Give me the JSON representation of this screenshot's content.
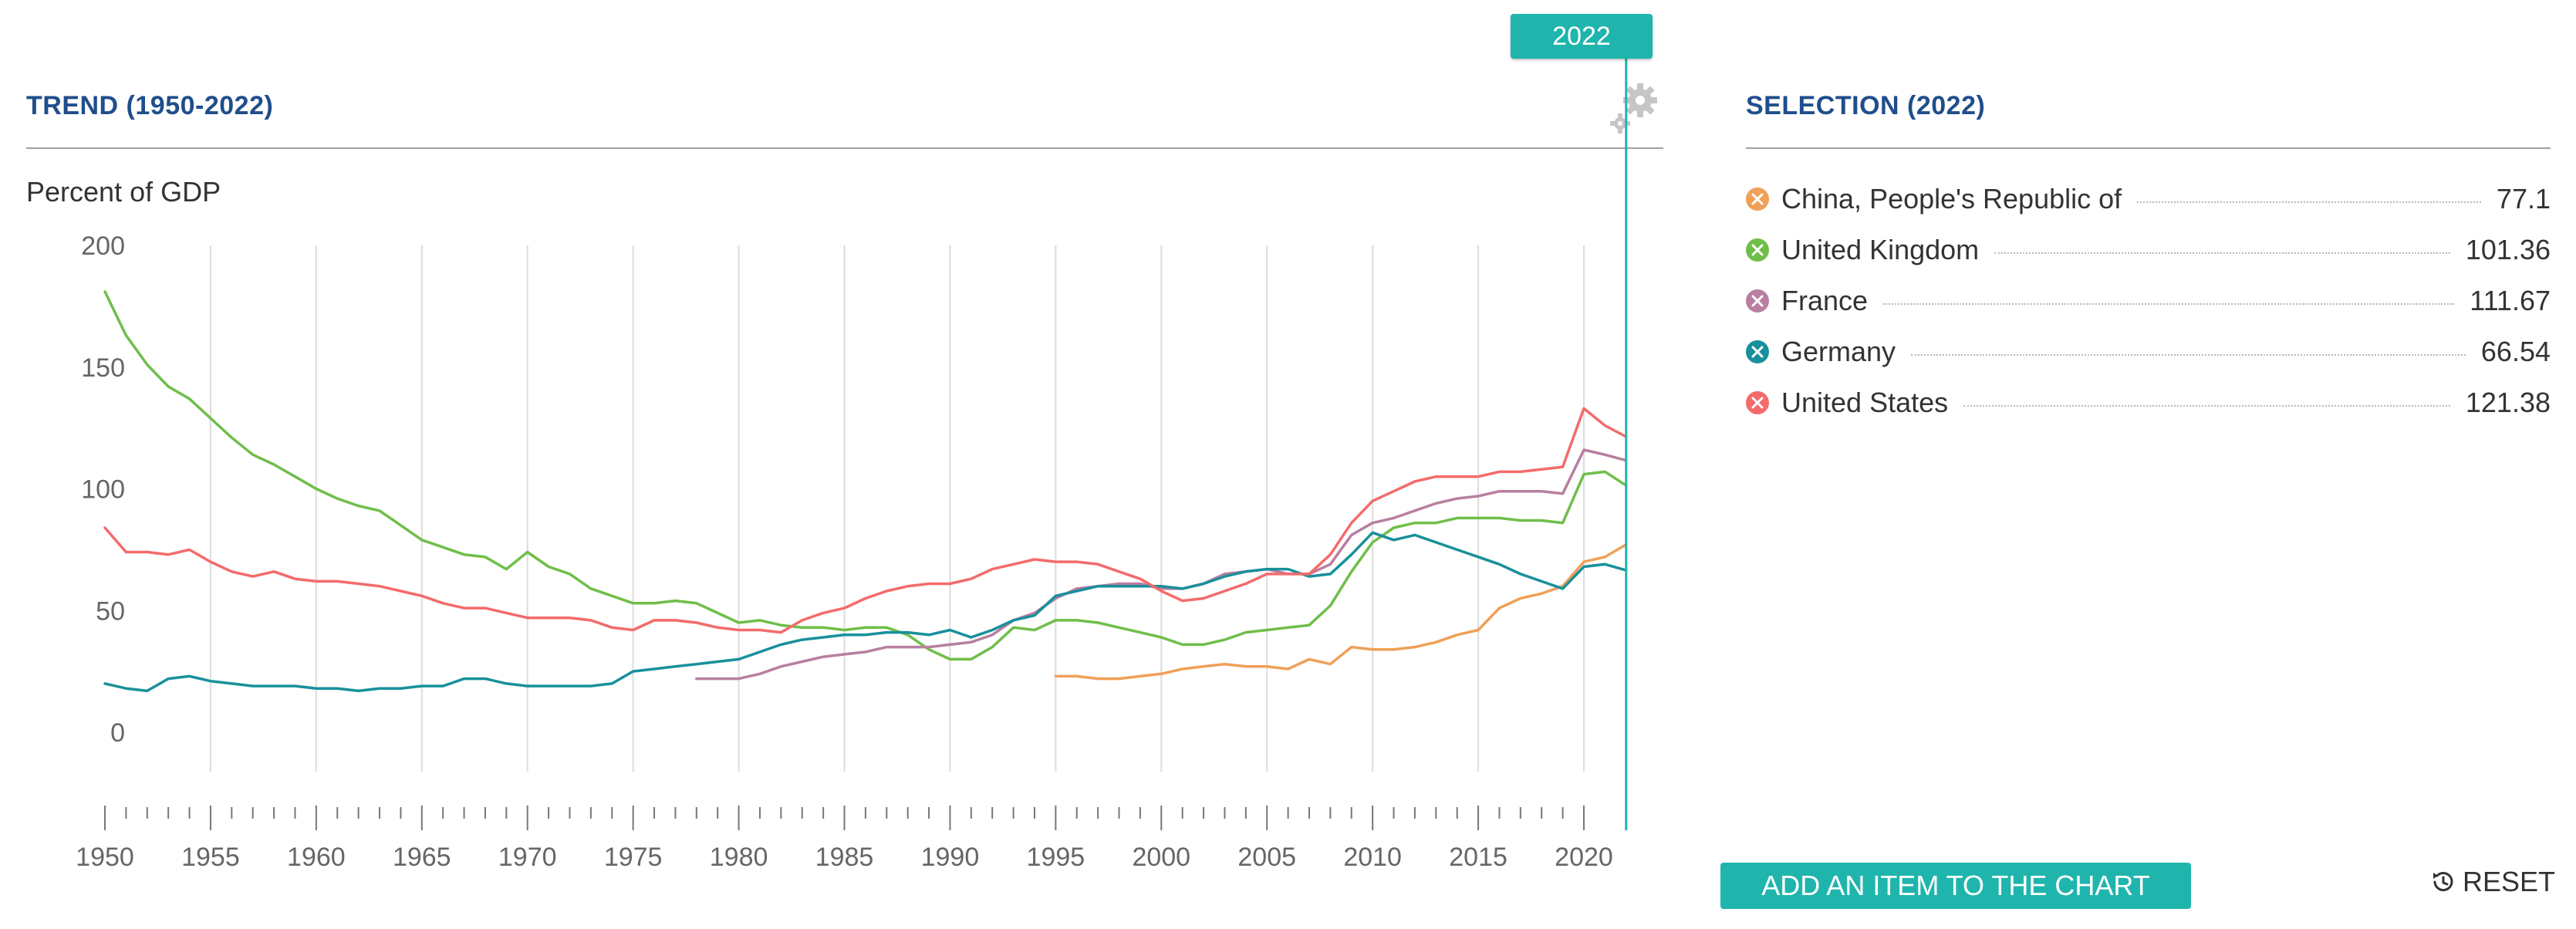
{
  "header": {
    "trend_title": "TREND (1950-2022)",
    "selection_title": "SELECTION (2022)",
    "year_flag": "2022",
    "ylabel": "Percent of GDP"
  },
  "legend": [
    {
      "name": "China, People's Republic of",
      "value": "77.1",
      "color": "#f0a058"
    },
    {
      "name": "United Kingdom",
      "value": "101.36",
      "color": "#6fbe4a"
    },
    {
      "name": "France",
      "value": "111.67",
      "color": "#b87fa0"
    },
    {
      "name": "Germany",
      "value": "66.54",
      "color": "#18909b"
    },
    {
      "name": "United States",
      "value": "121.38",
      "color": "#f36b6b"
    }
  ],
  "buttons": {
    "add_item": "ADD AN ITEM TO THE CHART",
    "reset": "RESET"
  },
  "icons": {
    "gear": "gear-icon",
    "reset": "reset-icon",
    "legend_remove": "remove-x-icon"
  },
  "chart_data": {
    "type": "line",
    "title": "TREND (1950-2022)",
    "xlabel": "",
    "ylabel": "Percent of GDP",
    "xlim": [
      1950,
      2022
    ],
    "ylim": [
      -30,
      200
    ],
    "yticks": [
      0,
      50,
      100,
      150,
      200
    ],
    "xticks": [
      1950,
      1955,
      1960,
      1965,
      1970,
      1975,
      1980,
      1985,
      1990,
      1995,
      2000,
      2005,
      2010,
      2015,
      2020
    ],
    "grid": "vertical",
    "highlight_year": 2022,
    "series": [
      {
        "name": "China, People's Republic of",
        "color": "#f0a058",
        "x": [
          1995,
          1996,
          1997,
          1998,
          1999,
          2000,
          2001,
          2002,
          2003,
          2004,
          2005,
          2006,
          2007,
          2008,
          2009,
          2010,
          2011,
          2012,
          2013,
          2014,
          2015,
          2016,
          2017,
          2018,
          2019,
          2020,
          2021,
          2022
        ],
        "y": [
          23,
          23,
          22,
          22,
          23,
          24,
          26,
          27,
          28,
          27,
          27,
          26,
          30,
          28,
          35,
          34,
          34,
          35,
          37,
          40,
          42,
          51,
          55,
          57,
          60,
          70,
          72,
          77.1
        ]
      },
      {
        "name": "United Kingdom",
        "color": "#6fbe4a",
        "x": [
          1950,
          1951,
          1952,
          1953,
          1954,
          1955,
          1956,
          1957,
          1958,
          1959,
          1960,
          1961,
          1962,
          1963,
          1964,
          1965,
          1966,
          1967,
          1968,
          1969,
          1970,
          1971,
          1972,
          1973,
          1974,
          1975,
          1976,
          1977,
          1978,
          1979,
          1980,
          1981,
          1982,
          1983,
          1984,
          1985,
          1986,
          1987,
          1988,
          1989,
          1990,
          1991,
          1992,
          1993,
          1994,
          1995,
          1996,
          1997,
          1998,
          1999,
          2000,
          2001,
          2002,
          2003,
          2004,
          2005,
          2006,
          2007,
          2008,
          2009,
          2010,
          2011,
          2012,
          2013,
          2014,
          2015,
          2016,
          2017,
          2018,
          2019,
          2020,
          2021,
          2022
        ],
        "y": [
          181,
          163,
          151,
          142,
          137,
          129,
          121,
          114,
          110,
          105,
          100,
          96,
          93,
          91,
          85,
          79,
          76,
          73,
          72,
          67,
          74,
          68,
          65,
          59,
          56,
          53,
          53,
          54,
          53,
          49,
          45,
          46,
          44,
          43,
          43,
          42,
          43,
          43,
          40,
          34,
          30,
          30,
          35,
          43,
          42,
          46,
          46,
          45,
          43,
          41,
          39,
          36,
          36,
          38,
          41,
          42,
          43,
          44,
          52,
          66,
          78,
          84,
          86,
          86,
          88,
          88,
          88,
          87,
          87,
          86,
          106,
          107,
          101.36
        ]
      },
      {
        "name": "France",
        "color": "#b87fa0",
        "x": [
          1978,
          1979,
          1980,
          1981,
          1982,
          1983,
          1984,
          1985,
          1986,
          1987,
          1988,
          1989,
          1990,
          1991,
          1992,
          1993,
          1994,
          1995,
          1996,
          1997,
          1998,
          1999,
          2000,
          2001,
          2002,
          2003,
          2004,
          2005,
          2006,
          2007,
          2008,
          2009,
          2010,
          2011,
          2012,
          2013,
          2014,
          2015,
          2016,
          2017,
          2018,
          2019,
          2020,
          2021,
          2022
        ],
        "y": [
          22,
          22,
          22,
          24,
          27,
          29,
          31,
          32,
          33,
          35,
          35,
          35,
          36,
          37,
          40,
          46,
          49,
          55,
          59,
          60,
          61,
          61,
          59,
          59,
          61,
          65,
          66,
          67,
          65,
          65,
          69,
          81,
          86,
          88,
          91,
          94,
          96,
          97,
          99,
          99,
          99,
          98,
          116,
          114,
          111.67
        ]
      },
      {
        "name": "Germany",
        "color": "#18909b",
        "x": [
          1950,
          1951,
          1952,
          1953,
          1954,
          1955,
          1956,
          1957,
          1958,
          1959,
          1960,
          1961,
          1962,
          1963,
          1964,
          1965,
          1966,
          1967,
          1968,
          1969,
          1970,
          1971,
          1972,
          1973,
          1974,
          1975,
          1976,
          1977,
          1978,
          1979,
          1980,
          1981,
          1982,
          1983,
          1984,
          1985,
          1986,
          1987,
          1988,
          1989,
          1990,
          1991,
          1992,
          1993,
          1994,
          1995,
          1996,
          1997,
          1998,
          1999,
          2000,
          2001,
          2002,
          2003,
          2004,
          2005,
          2006,
          2007,
          2008,
          2009,
          2010,
          2011,
          2012,
          2013,
          2014,
          2015,
          2016,
          2017,
          2018,
          2019,
          2020,
          2021,
          2022
        ],
        "y": [
          20,
          18,
          17,
          22,
          23,
          21,
          20,
          19,
          19,
          19,
          18,
          18,
          17,
          18,
          18,
          19,
          19,
          22,
          22,
          20,
          19,
          19,
          19,
          19,
          20,
          25,
          26,
          27,
          28,
          29,
          30,
          33,
          36,
          38,
          39,
          40,
          40,
          41,
          41,
          40,
          42,
          39,
          42,
          46,
          48,
          56,
          58,
          60,
          60,
          60,
          60,
          59,
          61,
          64,
          66,
          67,
          67,
          64,
          65,
          73,
          82,
          79,
          81,
          78,
          75,
          72,
          69,
          65,
          62,
          59,
          68,
          69,
          66.54
        ]
      },
      {
        "name": "United States",
        "color": "#f36b6b",
        "x": [
          1950,
          1951,
          1952,
          1953,
          1954,
          1955,
          1956,
          1957,
          1958,
          1959,
          1960,
          1961,
          1962,
          1963,
          1964,
          1965,
          1966,
          1967,
          1968,
          1969,
          1970,
          1971,
          1972,
          1973,
          1974,
          1975,
          1976,
          1977,
          1978,
          1979,
          1980,
          1981,
          1982,
          1983,
          1984,
          1985,
          1986,
          1987,
          1988,
          1989,
          1990,
          1991,
          1992,
          1993,
          1994,
          1995,
          1996,
          1997,
          1998,
          1999,
          2000,
          2001,
          2002,
          2003,
          2004,
          2005,
          2006,
          2007,
          2008,
          2009,
          2010,
          2011,
          2012,
          2013,
          2014,
          2015,
          2016,
          2017,
          2018,
          2019,
          2020,
          2021,
          2022
        ],
        "y": [
          84,
          74,
          74,
          73,
          75,
          70,
          66,
          64,
          66,
          63,
          62,
          62,
          61,
          60,
          58,
          56,
          53,
          51,
          51,
          49,
          47,
          47,
          47,
          46,
          43,
          42,
          46,
          46,
          45,
          43,
          42,
          42,
          41,
          46,
          49,
          51,
          55,
          58,
          60,
          61,
          61,
          63,
          67,
          69,
          71,
          70,
          70,
          69,
          66,
          63,
          58,
          54,
          55,
          58,
          61,
          65,
          65,
          65,
          73,
          86,
          95,
          99,
          103,
          105,
          105,
          105,
          107,
          107,
          108,
          109,
          133,
          126,
          121.38
        ]
      }
    ]
  }
}
